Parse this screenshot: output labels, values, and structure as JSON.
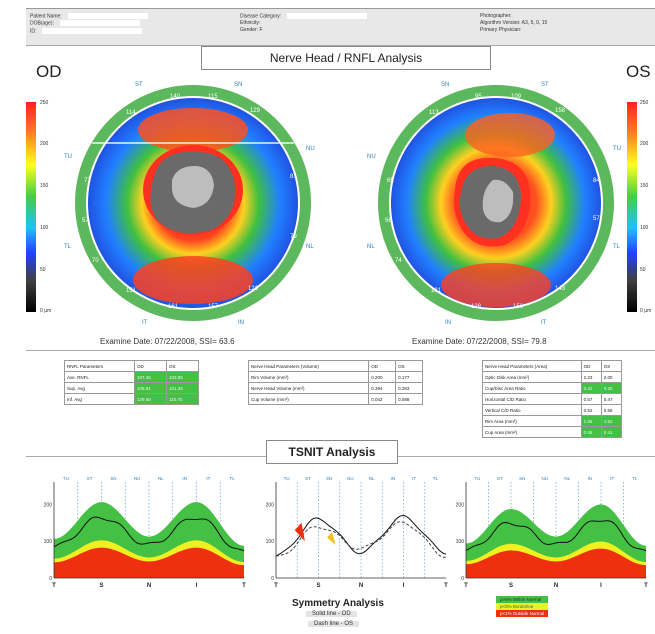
{
  "header": {
    "patient_name": "Patient Name:",
    "dob": "DOB(age):",
    "id": "ID:",
    "disease_category": "Disease Category:",
    "ethnicity": "Ethnicity:",
    "gender": "Gender: F",
    "photographer": "Photographer:",
    "algorithm_version": "Algorithm Version: A3, 5, 0, 15",
    "primary_physician": "Primary Physician:"
  },
  "title": "Nerve Head / RNFL Analysis",
  "od": {
    "label": "OD",
    "exam_date": "Examine Date: 07/22/2008, SSI= 63.6",
    "sector_labels": [
      "ST",
      "SN",
      "NU",
      "NL",
      "IN",
      "IT",
      "TL",
      "TU"
    ],
    "clock_values": [
      "140",
      "115",
      "129",
      "81",
      "79",
      "121",
      "157",
      "161",
      "151",
      "70",
      "57",
      "77",
      "114"
    ],
    "colorbar": [
      "250",
      "200",
      "150",
      "100",
      "50",
      "0 µm"
    ]
  },
  "os": {
    "label": "OS",
    "exam_date": "Examine Date: 07/22/2008, SSI= 79.8",
    "sector_labels": [
      "SN",
      "ST",
      "TU",
      "TL",
      "IT",
      "IN",
      "NL",
      "NU"
    ],
    "clock_values": [
      "95",
      "109",
      "158",
      "57",
      "84",
      "143",
      "156",
      "128",
      "131",
      "65",
      "56",
      "74",
      "113"
    ],
    "colorbar": [
      "250",
      "200",
      "150",
      "100",
      "50",
      "0 µm"
    ]
  },
  "rnfl_table": {
    "headers": [
      "RNFL Parameters",
      "OD",
      "OS"
    ],
    "rows": [
      {
        "name": "Ave. RNFL",
        "od": "107.45",
        "os": "103.55"
      },
      {
        "name": "Sup. Avg",
        "od": "106.91",
        "os": "101.34"
      },
      {
        "name": "Inf. Avg",
        "od": "129.60",
        "os": "110.70"
      }
    ]
  },
  "volume_table": {
    "headers": [
      "Nerve Head Parameters (Volume)",
      "OD",
      "OS"
    ],
    "rows": [
      {
        "name": "Rim Volume (mm³)",
        "od": "0.200",
        "os": "0.177"
      },
      {
        "name": "Nerve Head Volume (mm³)",
        "od": "0.394",
        "os": "0.283"
      },
      {
        "name": "Cup Volume (mm³)",
        "od": "0.042",
        "os": "0.088"
      }
    ]
  },
  "area_table": {
    "headers": [
      "Nerve Head Parameters (Area)",
      "OD",
      "OS"
    ],
    "rows": [
      {
        "name": "Optic Disk Area (mm²)",
        "od": "2.23",
        "os": "2.00"
      },
      {
        "name": "Cup/Disc Area Ratio",
        "od": "0.32",
        "os": "0.25"
      },
      {
        "name": "Horizontal C/D Ratio",
        "od": "0.57",
        "os": "0.47"
      },
      {
        "name": "Vertical C/D Ratio",
        "od": "0.52",
        "os": "0.56"
      },
      {
        "name": "Rim Area (mm²)",
        "od": "1.55",
        "os": "1.52"
      },
      {
        "name": "Cup Area (mm²)",
        "od": "0.68",
        "os": "0.41"
      }
    ]
  },
  "tsnit": {
    "title": "TSNIT Analysis",
    "sectors": [
      "TU",
      "ST",
      "SN",
      "NU",
      "NL",
      "IN",
      "IT",
      "TL"
    ],
    "x_labels": [
      "T",
      "S",
      "N",
      "I",
      "T"
    ],
    "y_ticks": [
      "200",
      "100",
      "0"
    ],
    "symmetry_title": "Symmetry Analysis",
    "solid_line": "Solid line - OD",
    "dash_line": "Dash line - OS",
    "legend": [
      {
        "label": "p>5% Within Normal",
        "color": "#44c044"
      },
      {
        "label": "p<5% Borderline",
        "color": "#f0f020"
      },
      {
        "label": "p<1% Outside Normal",
        "color": "#ee3010"
      }
    ]
  },
  "chart_data": [
    {
      "type": "area",
      "x": [
        "T",
        "S",
        "N",
        "I",
        "T"
      ],
      "ylim": [
        0,
        250
      ],
      "series": [
        {
          "name": "OD",
          "values": [
            85,
            165,
            90,
            165,
            70
          ]
        }
      ]
    },
    {
      "type": "line",
      "x": [
        "T",
        "S",
        "N",
        "I",
        "T"
      ],
      "ylim": [
        0,
        250
      ],
      "series": [
        {
          "name": "OD",
          "values": [
            60,
            160,
            70,
            165,
            70
          ]
        },
        {
          "name": "OS",
          "values": [
            55,
            140,
            80,
            150,
            60
          ]
        }
      ]
    },
    {
      "type": "area",
      "x": [
        "T",
        "S",
        "N",
        "I",
        "T"
      ],
      "ylim": [
        0,
        250
      ],
      "series": [
        {
          "name": "OS",
          "values": [
            75,
            150,
            90,
            160,
            70
          ]
        }
      ]
    }
  ]
}
